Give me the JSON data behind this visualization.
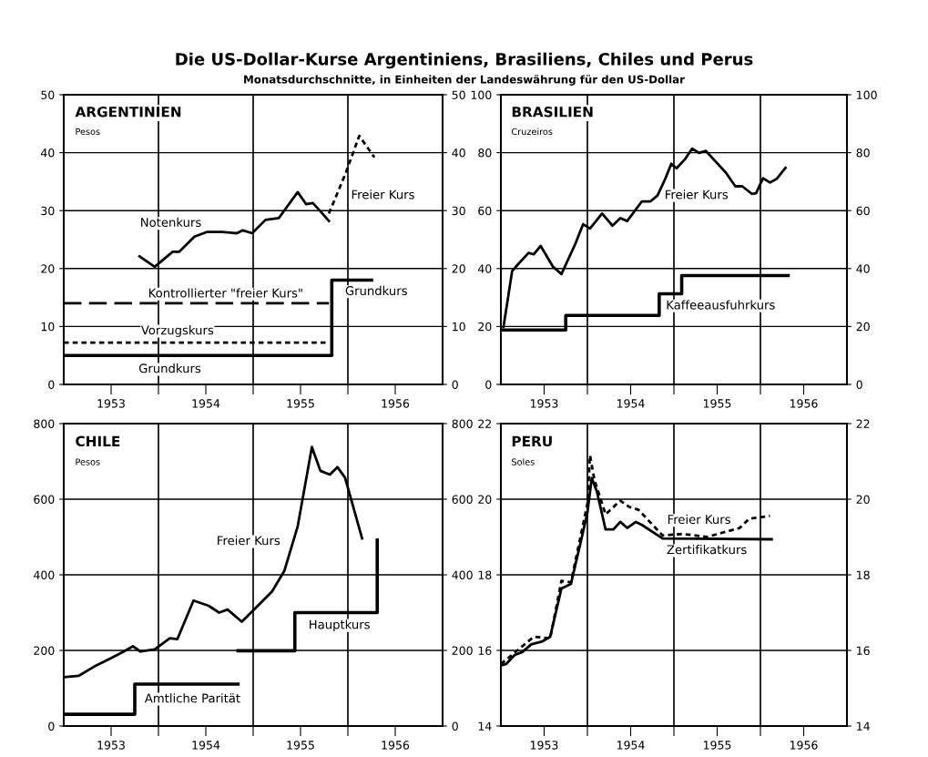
{
  "chart_data": [
    {
      "type": "line",
      "title": "ARGENTINIEN",
      "ylabel": "Pesos",
      "xlim": [
        1953,
        1957
      ],
      "xticks": [
        {
          "value": 1953.5,
          "label": "1953"
        },
        {
          "value": 1954,
          "label": null
        },
        {
          "value": 1954.5,
          "label": "1954"
        },
        {
          "value": 1955,
          "label": null
        },
        {
          "value": 1955.5,
          "label": "1955"
        },
        {
          "value": 1956,
          "label": null
        },
        {
          "value": 1956.5,
          "label": "1956"
        }
      ],
      "ylim": [
        0,
        50
      ],
      "yticks": [
        0,
        10,
        20,
        30,
        40,
        50
      ],
      "y2lim": [
        0,
        50
      ],
      "y2ticks": [
        0,
        10,
        20,
        30,
        40,
        50
      ],
      "grid": true,
      "annotations": [
        "Die US-Dollar-Kurse Argentiniens, Brasiliens, Chiles und Perus",
        "Monatsdurchschnitte, in Einheiten der Landeswährung für den US-Dollar"
      ],
      "series": [
        {
          "type": "line",
          "name": "Notenkurs",
          "color": "#000000",
          "line_style": "solid",
          "x": [
            1953.8,
            1953.96,
            1954.15,
            1954.22,
            1954.38,
            1954.51,
            1954.67,
            1954.83,
            1954.89,
            1954.99,
            1955.13,
            1955.27,
            1955.47,
            1955.56,
            1955.63,
            1955.72,
            1955.8
          ],
          "values": [
            22.1,
            20.3,
            22.9,
            22.9,
            25.5,
            26.3,
            26.3,
            26.1,
            26.6,
            26.1,
            28.4,
            28.7,
            33.2,
            31.1,
            31.3,
            29.7,
            28.2
          ]
        },
        {
          "type": "line",
          "name": "Freier Kurs",
          "color": "#000000",
          "line_style": "dotted",
          "x": [
            1955.8,
            1955.98,
            1956.12,
            1956.28
          ],
          "values": [
            29.5,
            36.6,
            42.9,
            39.2
          ]
        },
        {
          "type": "line",
          "name": "Kontrollierter \"freier Kurs\"",
          "color": "#000000",
          "line_style": "dashed",
          "x": [
            1953.0,
            1955.8
          ],
          "values": [
            14,
            14
          ]
        },
        {
          "type": "line",
          "name": "Vorzugskurs",
          "color": "#000000",
          "line_style": "dotted",
          "x": [
            1953.0,
            1955.8
          ],
          "values": [
            7.2,
            7.2
          ]
        },
        {
          "type": "step",
          "name": "Grundkurs",
          "color": "#000000",
          "line_style": "solid",
          "x": [
            1953.0,
            1955.83,
            1956.25
          ],
          "values": [
            5,
            18,
            18
          ]
        }
      ]
    },
    {
      "type": "line",
      "title": "BRASILIEN",
      "ylabel": "Cruzeiros",
      "xlim": [
        1953,
        1957
      ],
      "xticks": [
        {
          "value": 1953.5,
          "label": "1953"
        },
        {
          "value": 1954,
          "label": null
        },
        {
          "value": 1954.5,
          "label": "1954"
        },
        {
          "value": 1955,
          "label": null
        },
        {
          "value": 1955.5,
          "label": "1955"
        },
        {
          "value": 1956,
          "label": null
        },
        {
          "value": 1956.5,
          "label": "1956"
        }
      ],
      "ylim": [
        0,
        100
      ],
      "yticks": [
        0,
        20,
        40,
        60,
        80,
        100
      ],
      "y2lim": [
        0,
        100
      ],
      "y2ticks": [
        0,
        20,
        40,
        60,
        80,
        100
      ],
      "grid": true,
      "series": [
        {
          "type": "line",
          "name": "Freier Kurs",
          "color": "#000000",
          "line_style": "solid",
          "x": [
            1953.03,
            1953.13,
            1953.19,
            1953.32,
            1953.38,
            1953.46,
            1953.6,
            1953.7,
            1953.86,
            1953.95,
            1954.03,
            1954.17,
            1954.29,
            1954.38,
            1954.46,
            1954.63,
            1954.73,
            1954.81,
            1954.9,
            1954.97,
            1955.03,
            1955.13,
            1955.21,
            1955.29,
            1955.37,
            1955.49,
            1955.6,
            1955.71,
            1955.79,
            1955.9,
            1955.95,
            1956.03,
            1956.11,
            1956.19,
            1956.29
          ],
          "values": [
            19.8,
            39.1,
            41.2,
            45.4,
            44.9,
            47.8,
            40.7,
            38.1,
            48.5,
            55.3,
            53.8,
            59.0,
            54.8,
            57.4,
            56.4,
            63.2,
            63.2,
            65.2,
            71.0,
            76.2,
            74.6,
            77.8,
            81.4,
            79.9,
            80.6,
            76.7,
            73.1,
            68.4,
            68.4,
            65.8,
            66.0,
            71.2,
            69.7,
            71.0,
            74.8
          ]
        },
        {
          "type": "step",
          "name": "Kaffeeausfuhrkurs",
          "color": "#000000",
          "line_style": "solid",
          "x": [
            1953.0,
            1953.75,
            1954.83,
            1955.09,
            1956.32
          ],
          "values": [
            18.8,
            23.8,
            31.3,
            37.6,
            37.6
          ]
        }
      ]
    },
    {
      "type": "line",
      "title": "CHILE",
      "ylabel": "Pesos",
      "xlim": [
        1953,
        1957
      ],
      "xticks": [
        {
          "value": 1953.5,
          "label": "1953"
        },
        {
          "value": 1954,
          "label": null
        },
        {
          "value": 1954.5,
          "label": "1954"
        },
        {
          "value": 1955,
          "label": null
        },
        {
          "value": 1955.5,
          "label": "1955"
        },
        {
          "value": 1956,
          "label": null
        },
        {
          "value": 1956.5,
          "label": "1956"
        }
      ],
      "ylim": [
        0,
        800
      ],
      "yticks": [
        0,
        200,
        400,
        600,
        800
      ],
      "y2lim": [
        0,
        800
      ],
      "y2ticks": [
        0,
        200,
        400,
        600,
        800
      ],
      "grid": true,
      "series": [
        {
          "type": "line",
          "name": "Freier Kurs",
          "color": "#000000",
          "line_style": "solid",
          "x": [
            1953.0,
            1953.16,
            1953.32,
            1953.48,
            1953.62,
            1953.73,
            1953.81,
            1953.96,
            1954.12,
            1954.2,
            1954.37,
            1954.53,
            1954.64,
            1954.73,
            1954.88,
            1955.08,
            1955.2,
            1955.33,
            1955.47,
            1955.62,
            1955.71,
            1955.81,
            1955.89,
            1955.97,
            1956.15
          ],
          "values": [
            129,
            133,
            157,
            177,
            195,
            211,
            197,
            203,
            232,
            230,
            332,
            318,
            300,
            308,
            276,
            326,
            356,
            411,
            528,
            738,
            675,
            665,
            685,
            657,
            496
          ]
        },
        {
          "type": "step",
          "name": "Amtliche Parität",
          "color": "#000000",
          "line_style": "solid",
          "x": [
            1953.0,
            1953.75,
            1954.84
          ],
          "values": [
            31,
            111,
            111
          ]
        },
        {
          "type": "step",
          "name": "Hauptkurs",
          "color": "#000000",
          "line_style": "solid",
          "x": [
            1954.84,
            1955.44,
            1956.31
          ],
          "values": [
            199,
            300,
            492
          ]
        }
      ]
    },
    {
      "type": "line",
      "title": "PERU",
      "ylabel": "Soles",
      "xlim": [
        1953,
        1957
      ],
      "xticks": [
        {
          "value": 1953.5,
          "label": "1953"
        },
        {
          "value": 1954,
          "label": null
        },
        {
          "value": 1954.5,
          "label": "1954"
        },
        {
          "value": 1955,
          "label": null
        },
        {
          "value": 1955.5,
          "label": "1955"
        },
        {
          "value": 1956,
          "label": null
        },
        {
          "value": 1956.5,
          "label": "1956"
        }
      ],
      "ylim": [
        14,
        22
      ],
      "yticks": [
        14,
        16,
        18,
        20,
        22
      ],
      "y2lim": [
        14,
        22
      ],
      "y2ticks": [
        14,
        16,
        18,
        20,
        22
      ],
      "grid": true,
      "series": [
        {
          "type": "line",
          "name": "Zertifikatkurs",
          "color": "#000000",
          "line_style": "solid",
          "x": [
            1953.0,
            1953.06,
            1953.16,
            1953.25,
            1953.35,
            1953.48,
            1953.57,
            1953.7,
            1953.81,
            1953.92,
            1954.0,
            1954.05,
            1954.11,
            1954.21,
            1954.3,
            1954.38,
            1954.46,
            1954.56,
            1954.63,
            1954.87,
            1956.13
          ],
          "values": [
            15.6,
            15.64,
            15.88,
            15.96,
            16.16,
            16.24,
            16.36,
            17.64,
            17.76,
            18.84,
            19.64,
            20.56,
            20.2,
            19.2,
            19.2,
            19.4,
            19.24,
            19.4,
            19.32,
            18.96,
            18.94
          ]
        },
        {
          "type": "line",
          "name": "Freier Kurs",
          "color": "#000000",
          "line_style": "dotted",
          "x": [
            1953.0,
            1953.38,
            1953.57,
            1953.7,
            1953.81,
            1954.0,
            1954.03,
            1954.08,
            1954.21,
            1954.38,
            1954.48,
            1954.59,
            1954.87,
            1955.1,
            1955.25,
            1955.38,
            1955.57,
            1955.76,
            1955.87,
            1956.11
          ],
          "values": [
            15.64,
            16.36,
            16.32,
            17.84,
            17.8,
            19.88,
            21.16,
            20.52,
            19.6,
            19.96,
            19.8,
            19.72,
            19.04,
            19.08,
            19.04,
            19.0,
            19.12,
            19.24,
            19.48,
            19.56
          ]
        }
      ]
    }
  ]
}
